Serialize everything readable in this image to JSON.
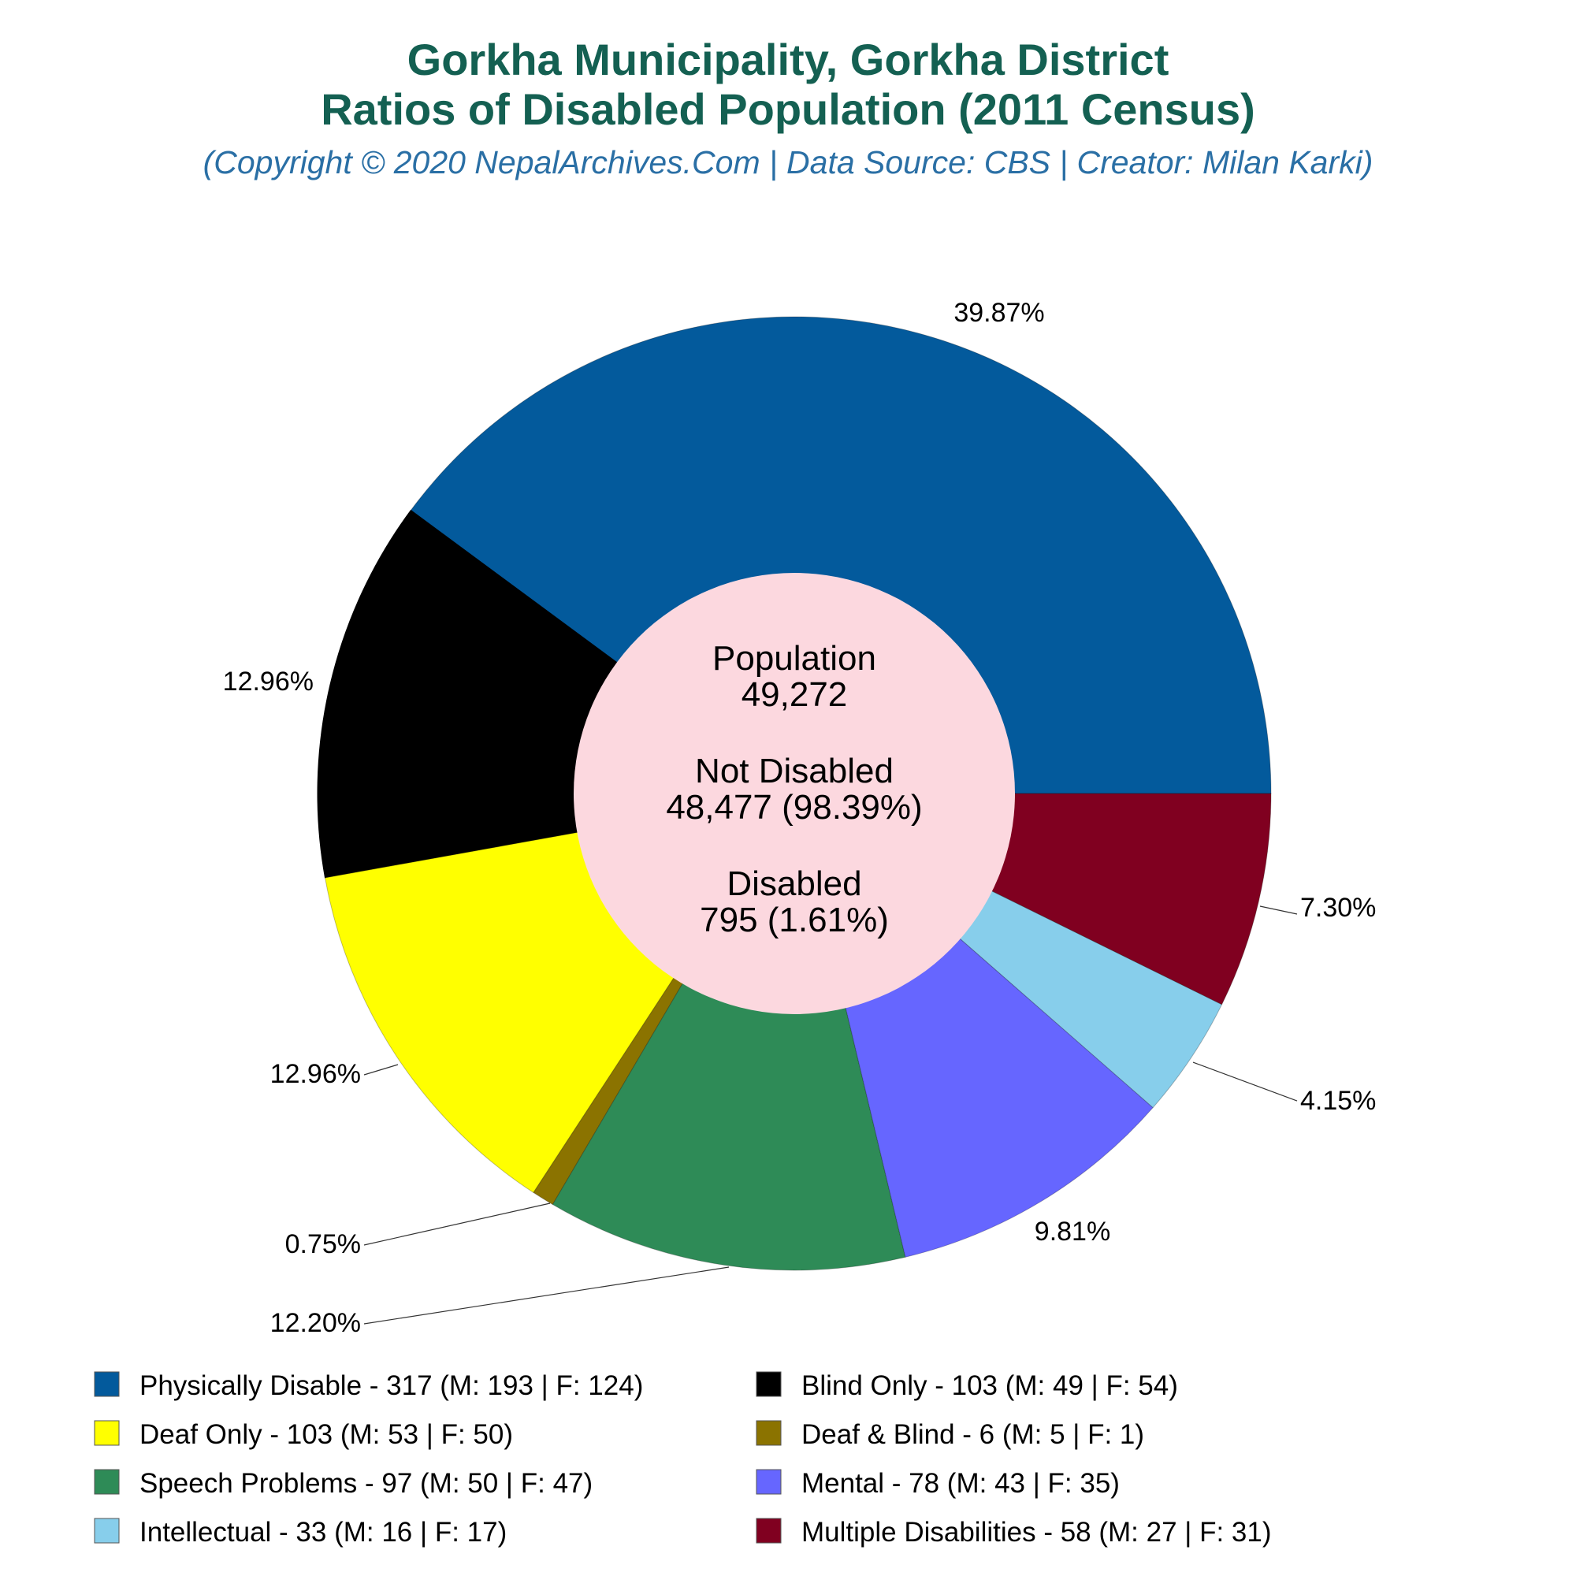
{
  "title_line1": "Gorkha Municipality, Gorkha District",
  "title_line2": "Ratios of Disabled Population (2011 Census)",
  "subtitle": "(Copyright © 2020 NepalArchives.Com | Data Source: CBS | Creator: Milan Karki)",
  "center": {
    "population_label": "Population",
    "population_value": "49,272",
    "not_disabled_label": "Not Disabled",
    "not_disabled_value": "48,477 (98.39%)",
    "disabled_label": "Disabled",
    "disabled_value": "795 (1.61%)",
    "fill": "#fcd8df"
  },
  "chart_data": {
    "type": "pie",
    "style": "donut",
    "start": "3 o'clock, counterclockwise",
    "slices": [
      {
        "name": "Physically Disable",
        "value": 317,
        "male": 193,
        "female": 124,
        "percent": "39.87%",
        "color": "#035a9c",
        "legend": "Physically Disable - 317 (M: 193 | F: 124)"
      },
      {
        "name": "Blind Only",
        "value": 103,
        "male": 49,
        "female": 54,
        "percent": "12.96%",
        "color": "#000000",
        "legend": "Blind Only - 103 (M: 49 | F: 54)"
      },
      {
        "name": "Deaf Only",
        "value": 103,
        "male": 53,
        "female": 50,
        "percent": "12.96%",
        "color": "#ffff00",
        "legend": "Deaf Only - 103 (M: 53 | F: 50)"
      },
      {
        "name": "Deaf & Blind",
        "value": 6,
        "male": 5,
        "female": 1,
        "percent": "0.75%",
        "color": "#8b7300",
        "legend": "Deaf & Blind - 6 (M: 5 | F: 1)"
      },
      {
        "name": "Speech Problems",
        "value": 97,
        "male": 50,
        "female": 47,
        "percent": "12.20%",
        "color": "#2e8b57",
        "legend": "Speech Problems - 97 (M: 50 | F: 47)"
      },
      {
        "name": "Mental",
        "value": 78,
        "male": 43,
        "female": 35,
        "percent": "9.81%",
        "color": "#6666ff",
        "legend": "Mental - 78 (M: 43 | F: 35)"
      },
      {
        "name": "Intellectual",
        "value": 33,
        "male": 16,
        "female": 17,
        "percent": "4.15%",
        "color": "#87ceeb",
        "legend": "Intellectual - 33 (M: 16 | F: 17)"
      },
      {
        "name": "Multiple Disabilities",
        "value": 58,
        "male": 27,
        "female": 31,
        "percent": "7.30%",
        "color": "#800020",
        "legend": "Multiple Disabilities - 58 (M: 27 | F: 31)"
      }
    ],
    "legend_position": "bottom"
  }
}
